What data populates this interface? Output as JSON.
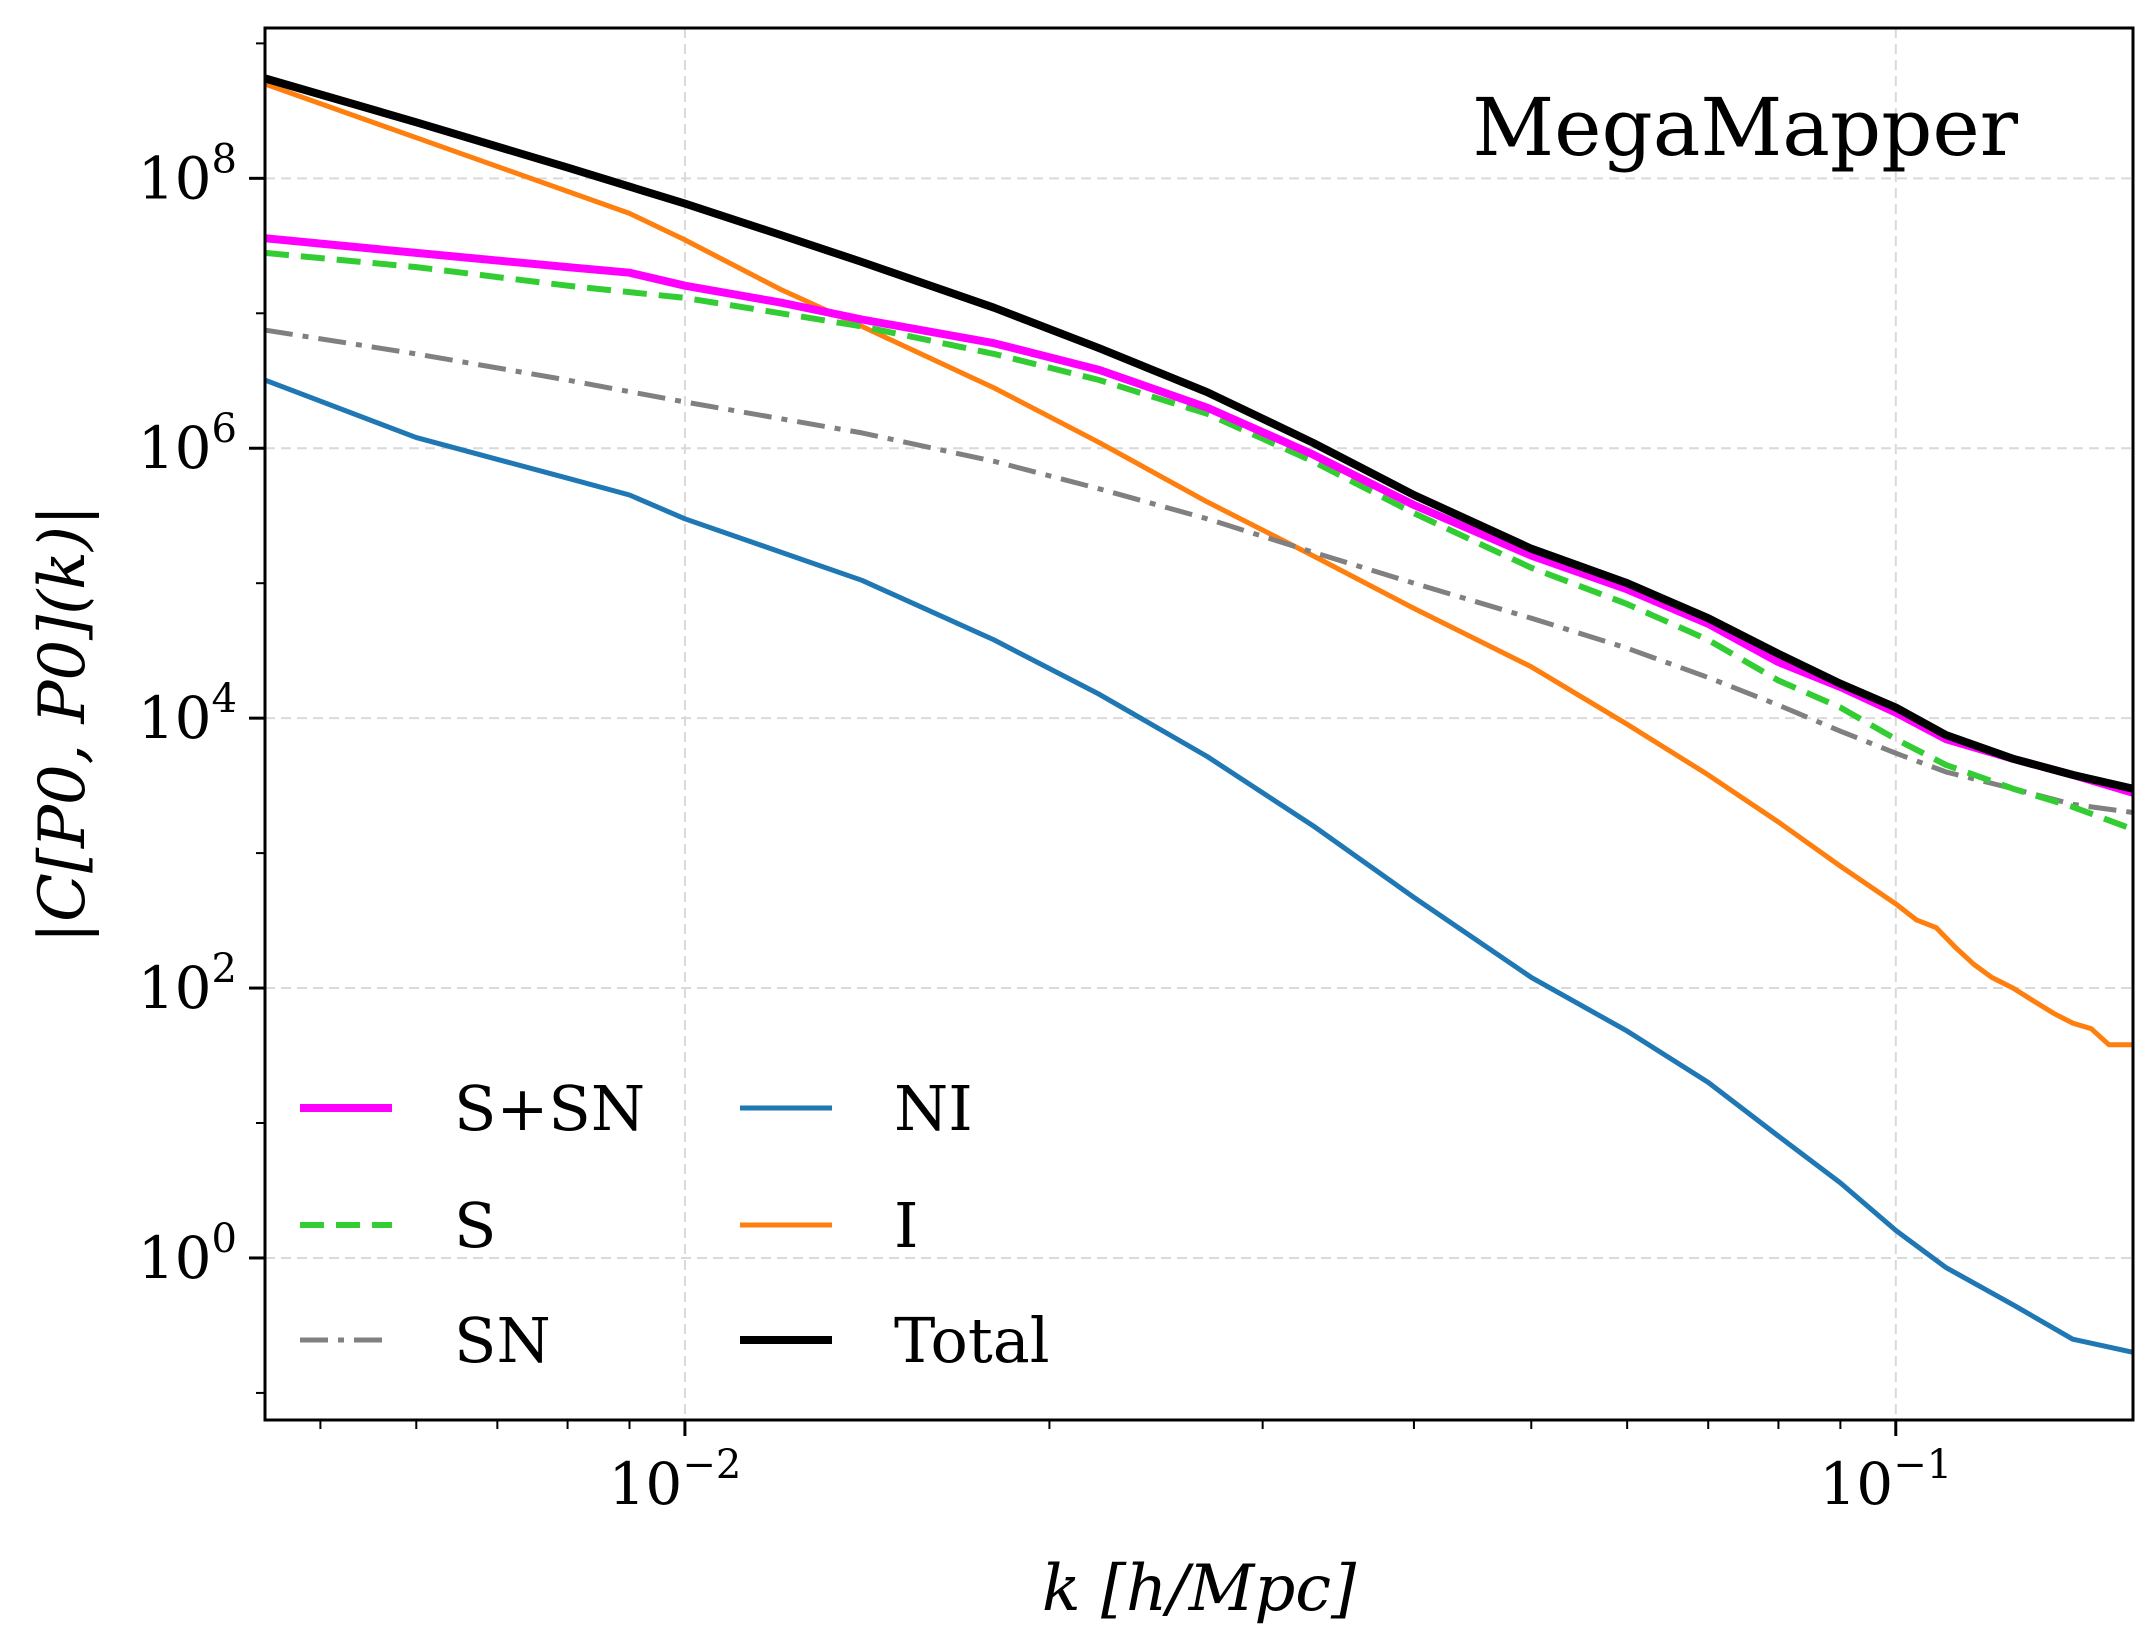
{
  "chart_data": {
    "type": "line",
    "title": "",
    "annotation": "MegaMapper",
    "xlabel": "k [h/Mpc]",
    "ylabel": "|C[P0, P0](k)|",
    "xscale": "log",
    "yscale": "log",
    "xlim": [
      0.0045,
      0.157
    ],
    "ylim": [
      0.063,
      1300000000.0
    ],
    "grid": true,
    "legend_position": "lower-left",
    "x_ticks": [
      {
        "value": 0.01,
        "base": "10",
        "exp": "−2"
      },
      {
        "value": 0.1,
        "base": "10",
        "exp": "−1"
      }
    ],
    "y_ticks": [
      {
        "value": 1,
        "base": "10",
        "exp": "0"
      },
      {
        "value": 100,
        "base": "10",
        "exp": "2"
      },
      {
        "value": 10000,
        "base": "10",
        "exp": "4"
      },
      {
        "value": 1000000,
        "base": "10",
        "exp": "6"
      },
      {
        "value": 100000000,
        "base": "10",
        "exp": "8"
      }
    ],
    "series": [
      {
        "name": "NI",
        "color": "#1f77b4",
        "width": 5,
        "dash": "",
        "x": [
          0.0045,
          0.006,
          0.008,
          0.009,
          0.01,
          0.012,
          0.014,
          0.018,
          0.022,
          0.027,
          0.033,
          0.04,
          0.05,
          0.06,
          0.07,
          0.08,
          0.09,
          0.1,
          0.11,
          0.125,
          0.14,
          0.157
        ],
        "y": [
          3200000.0,
          1200000.0,
          600000.0,
          450000.0,
          300000.0,
          170000.0,
          105000.0,
          38000.0,
          15000.0,
          5200.0,
          1600.0,
          470,
          120,
          48,
          20,
          8,
          3.6,
          1.6,
          0.85,
          0.45,
          0.25,
          0.2
        ]
      },
      {
        "name": "I",
        "color": "#ff7f0e",
        "width": 5,
        "dash": "",
        "x": [
          0.0045,
          0.006,
          0.008,
          0.009,
          0.01,
          0.012,
          0.014,
          0.018,
          0.022,
          0.027,
          0.033,
          0.04,
          0.05,
          0.06,
          0.07,
          0.08,
          0.09,
          0.1,
          0.104,
          0.108,
          0.112,
          0.116,
          0.12,
          0.125,
          0.13,
          0.135,
          0.14,
          0.145,
          0.15,
          0.157
        ],
        "y": [
          500000000.0,
          200000000.0,
          80000000.0,
          55000000.0,
          35000000.0,
          15000000.0,
          8000000.0,
          2800000.0,
          1100000.0,
          400000.0,
          160000.0,
          65000.0,
          24000.0,
          9000.0,
          3800.0,
          1700.0,
          800,
          420,
          320,
          280,
          200,
          150,
          120,
          100,
          80,
          65,
          55,
          50,
          38,
          38
        ]
      },
      {
        "name": "SN",
        "color": "#808080",
        "width": 5,
        "dash": "28 10 6 10",
        "x": [
          0.0045,
          0.006,
          0.008,
          0.01,
          0.014,
          0.018,
          0.022,
          0.027,
          0.033,
          0.04,
          0.05,
          0.06,
          0.07,
          0.08,
          0.09,
          0.1,
          0.11,
          0.125,
          0.14,
          0.157
        ],
        "y": [
          7500000.0,
          5000000.0,
          3200000.0,
          2200000.0,
          1300000.0,
          800000.0,
          500000.0,
          300000.0,
          170000.0,
          100000.0,
          55000.0,
          33000.0,
          20000.0,
          12500.0,
          8000.0,
          5500.0,
          4000.0,
          3000.0,
          2300.0,
          2000.0
        ]
      },
      {
        "name": "S",
        "color": "#32cd32",
        "width": 6,
        "dash": "24 12",
        "x": [
          0.0045,
          0.006,
          0.008,
          0.01,
          0.012,
          0.014,
          0.018,
          0.022,
          0.027,
          0.033,
          0.04,
          0.05,
          0.06,
          0.07,
          0.08,
          0.09,
          0.1,
          0.11,
          0.125,
          0.14,
          0.157
        ],
        "y": [
          28000000.0,
          22000000.0,
          16000000.0,
          13000000.0,
          10000000.0,
          8000000.0,
          5000000.0,
          3200000.0,
          1800000.0,
          800000.0,
          330000.0,
          130000.0,
          70000.0,
          38000.0,
          19000.0,
          12000.0,
          7000.0,
          4500.0,
          3000.0,
          2200.0,
          1500.0
        ]
      },
      {
        "name": "S+SN",
        "color": "#ff00ff",
        "width": 8,
        "dash": "",
        "x": [
          0.0045,
          0.006,
          0.008,
          0.009,
          0.01,
          0.012,
          0.014,
          0.018,
          0.022,
          0.027,
          0.033,
          0.04,
          0.05,
          0.06,
          0.07,
          0.08,
          0.09,
          0.1,
          0.11,
          0.125,
          0.14,
          0.157
        ],
        "y": [
          36000000.0,
          28000000.0,
          22000000.0,
          20000000.0,
          16000000.0,
          12000000.0,
          9000000.0,
          6000000.0,
          3800000.0,
          2000000.0,
          900000.0,
          380000.0,
          160000.0,
          90000.0,
          50000.0,
          26000.0,
          17000.0,
          11000.0,
          7000.0,
          5000.0,
          3800.0,
          2800.0
        ]
      },
      {
        "name": "Total",
        "color": "#000000",
        "width": 8,
        "dash": "",
        "x": [
          0.0045,
          0.006,
          0.008,
          0.01,
          0.012,
          0.014,
          0.018,
          0.022,
          0.027,
          0.033,
          0.04,
          0.05,
          0.06,
          0.07,
          0.08,
          0.09,
          0.1,
          0.11,
          0.125,
          0.14,
          0.157
        ],
        "y": [
          550000000.0,
          260000000.0,
          120000000.0,
          65000000.0,
          38000000.0,
          24000000.0,
          11000000.0,
          5500000.0,
          2600000.0,
          1100000.0,
          450000.0,
          180000.0,
          100000.0,
          55000.0,
          30000.0,
          18000.0,
          12000.0,
          7500.0,
          5000.0,
          3800.0,
          3000.0
        ]
      }
    ],
    "legend": {
      "columns": [
        [
          {
            "label": "S+SN",
            "series": "S+SN"
          },
          {
            "label": "S",
            "series": "S"
          },
          {
            "label": "SN",
            "series": "SN"
          }
        ],
        [
          {
            "label": "NI",
            "series": "NI"
          },
          {
            "label": "I",
            "series": "I"
          },
          {
            "label": "Total",
            "series": "Total"
          }
        ]
      ]
    }
  }
}
